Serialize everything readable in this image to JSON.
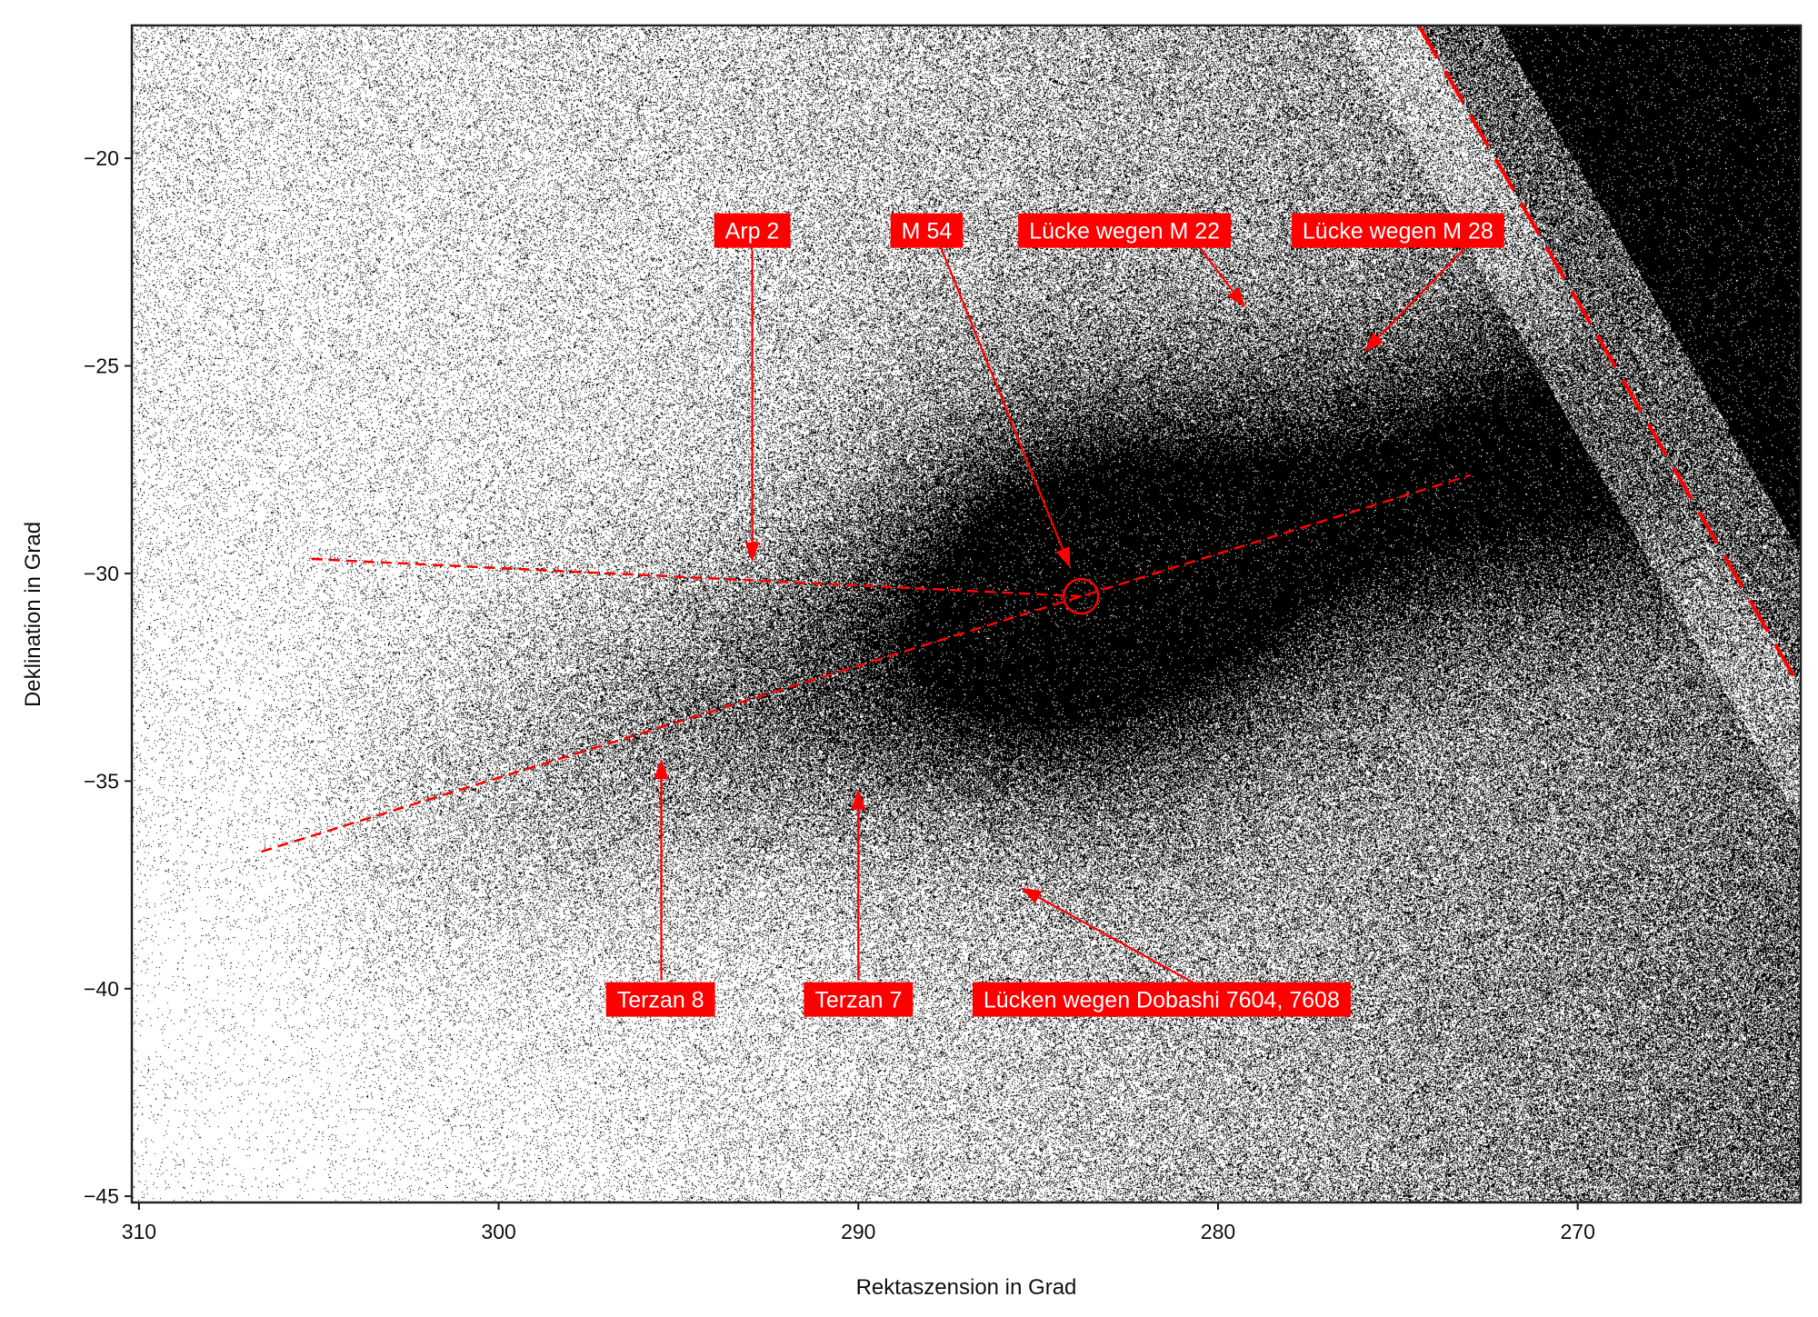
{
  "chart_data": {
    "type": "scatter",
    "title": "",
    "xlabel": "Rektaszension in Grad",
    "ylabel": "Deklination in Grad",
    "xlim": [
      310.2,
      263.8
    ],
    "ylim": [
      -45.15,
      -16.8
    ],
    "x_inverted": true,
    "xticks": [
      310,
      300,
      290,
      280,
      270
    ],
    "yticks": [
      -20,
      -25,
      -30,
      -35,
      -40,
      -45
    ],
    "xtick_labels": [
      "310",
      "300",
      "290",
      "280",
      "270"
    ],
    "ytick_labels": [
      "−20",
      "−25",
      "−30",
      "−35",
      "−40",
      "−45"
    ],
    "grid": false,
    "legend": "none",
    "point_color": "#000000",
    "annotation_color": "#ff0000",
    "annotations": [
      {
        "text": "Arp 2",
        "label_xy": [
          292.95,
          -21.74
        ],
        "tail_xy": [
          292.95,
          -22.2
        ],
        "arrow_xy": [
          292.95,
          -29.68
        ]
      },
      {
        "text": "M 54",
        "label_xy": [
          288.1,
          -21.74
        ],
        "tail_xy": [
          287.7,
          -22.16
        ],
        "arrow_xy": [
          284.13,
          -29.82
        ]
      },
      {
        "text": "Lücke wegen M 22",
        "label_xy": [
          282.6,
          -21.74
        ],
        "tail_xy": [
          280.5,
          -22.16
        ],
        "arrow_xy": [
          279.27,
          -23.56
        ]
      },
      {
        "text": "Lücke wegen M 28",
        "label_xy": [
          275.0,
          -21.74
        ],
        "tail_xy": [
          273.14,
          -22.16
        ],
        "arrow_xy": [
          275.9,
          -24.63
        ]
      },
      {
        "text": "Terzan 8",
        "label_xy": [
          295.5,
          -40.26
        ],
        "tail_xy": [
          295.48,
          -39.8
        ],
        "arrow_xy": [
          295.48,
          -34.51
        ]
      },
      {
        "text": "Terzan 7",
        "label_xy": [
          290.0,
          -40.26
        ],
        "tail_xy": [
          290.0,
          -39.8
        ],
        "arrow_xy": [
          290.0,
          -35.24
        ]
      },
      {
        "text": "Lücken wegen Dobashi 7604, 7608",
        "label_xy": [
          281.57,
          -40.26
        ],
        "tail_xy": [
          280.66,
          -39.87
        ],
        "arrow_xy": [
          285.43,
          -37.59
        ]
      }
    ],
    "circle": {
      "center": [
        283.81,
        -30.55
      ]
    },
    "dashed_lines": [
      {
        "from": [
          305.2,
          -29.65
        ],
        "to": [
          283.81,
          -30.55
        ]
      },
      {
        "from": [
          306.6,
          -36.7
        ],
        "to": [
          272.98,
          -27.63
        ]
      },
      {
        "from": [
          274.4,
          -16.83
        ],
        "to": [
          263.8,
          -32.77
        ],
        "style": "long-dash"
      }
    ]
  }
}
